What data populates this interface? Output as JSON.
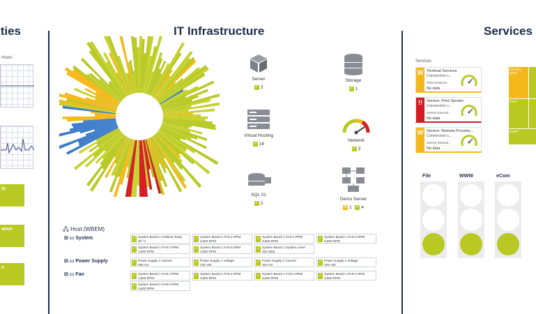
{
  "left": {
    "title": "ities",
    "hours_label": "Hours",
    "tiles": [
      "te",
      "ance",
      "e"
    ]
  },
  "center": {
    "title": "IT Infrastructure",
    "devices": [
      {
        "label": "Server",
        "icon": "cube-icon",
        "ok": "3"
      },
      {
        "label": "Storage",
        "icon": "database-icon",
        "ok": "1"
      },
      {
        "label": "Virtual Hosting",
        "icon": "server-rack-icon",
        "ok": "16"
      },
      {
        "label": "Network",
        "icon": "speedometer-icon",
        "ok": "3"
      },
      {
        "label": "SQL 01",
        "icon": "sql-database-icon",
        "ok": "2"
      },
      {
        "label": "Demo Server",
        "icon": "network-computers-icon",
        "warn": "1",
        "ok": "4"
      }
    ],
    "host": {
      "title": "Host (WBEM)",
      "groups": [
        {
          "label": "System",
          "sensors": [
            {
              "name": "System Board 1 Ambient Temp",
              "value": "20 °C"
            },
            {
              "name": "System Board 1 FAN 1 RPM",
              "value": "3,600 RPM"
            },
            {
              "name": "System Board 1 FAN 2 RPM",
              "value": "3,600 RPM"
            },
            {
              "name": "System Board 1 FAN 3 RPM",
              "value": "3,600 RPM"
            },
            {
              "name": "System Board 1 FAN 4 RPM",
              "value": "3,600 RPM"
            },
            {
              "name": "System Board 1 FAN 5 RPM",
              "value": "3,600 RPM"
            },
            {
              "name": "System Board 1 System Level",
              "value": "252 Watt"
            }
          ]
        },
        {
          "label": "Power Supply",
          "sensors": [
            {
              "name": "Power Supply 1 Current",
              "value": "480 mA"
            },
            {
              "name": "Power Supply 1 Voltage",
              "value": "226 Volt"
            },
            {
              "name": "Power Supply 2 Current",
              "value": "400 mA"
            },
            {
              "name": "Power Supply 2 Voltage",
              "value": "226 Volt"
            }
          ]
        },
        {
          "label": "Fan",
          "sensors": [
            {
              "name": "System Board 1 FAN 1 RPM",
              "value": "3,600 RPM"
            },
            {
              "name": "System Board 1 FAN 2 RPM",
              "value": "3,600 RPM"
            },
            {
              "name": "System Board 1 FAN 3 RPM",
              "value": "3,600 RPM"
            },
            {
              "name": "System Board 1 FAN 4 RPM",
              "value": "3,600 RPM"
            },
            {
              "name": "System Board 1 FAN 5 RPM",
              "value": "3,600 RPM"
            }
          ]
        }
      ]
    }
  },
  "right": {
    "title": "Services",
    "services_label": "Services",
    "services": [
      {
        "title": "Terminal Services",
        "status": "Connection c...",
        "metric": "Total Sessions",
        "value": "No data",
        "state": "warning",
        "mark": "W"
      },
      {
        "title": "Service: Print Spooler",
        "status": "Connection c...",
        "metric": "Sensor Executi...",
        "value": "No data",
        "state": "error",
        "mark": "!!"
      },
      {
        "title": "Service: Remote Procedu...",
        "status": "Connection c...",
        "metric": "Sensor Executi...",
        "value": "No data",
        "state": "warning",
        "mark": "W"
      }
    ],
    "heatmap_labels": [
      "MS SQL 2019",
      "IMAP",
      "SMTP"
    ],
    "traffic_lights": [
      "File",
      "WWW",
      "eCom"
    ]
  },
  "colors": {
    "ok": "#b7c922",
    "warning": "#f4b81a",
    "error": "#d71920",
    "info": "#3d7cc9",
    "navy": "#1f2d4a"
  }
}
